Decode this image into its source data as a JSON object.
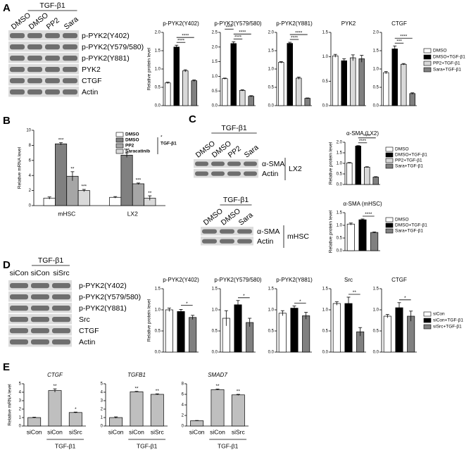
{
  "panels": [
    {
      "label": "A",
      "blots": [
        {
          "treatment": "TGF-β1",
          "lanes": [
            "DMSO",
            "DMSO",
            "PP2",
            "Sara"
          ],
          "rows": [
            "p-PYK2(Y402)",
            "p-PYK2(Y579/580)",
            "p-PYK2(Y881)",
            "PYK2",
            "CTGF",
            "Actin"
          ]
        }
      ],
      "charts": [
        {
          "type": "bar",
          "title": "p-PYK2(Y402)",
          "ylabel": "Relative protein level",
          "values": [
            0.62,
            1.6,
            0.95,
            0.68
          ],
          "errors": [
            0.02,
            0.05,
            0.03,
            0.02
          ],
          "ylim": [
            0,
            2
          ],
          "yticks": [
            {
              "value": 0,
              "label": "0.0"
            },
            0.5,
            {
              "value": 1,
              "label": "1.0"
            },
            1.5,
            {
              "value": 2,
              "label": "2.0"
            }
          ],
          "brackets": [
            {
              "bars": [
                1,
                2
              ],
              "label": "****"
            },
            {
              "bars": [
                1,
                3
              ],
              "label": "****"
            }
          ]
        },
        {
          "type": "bar",
          "title": "p-PYK2(Y579/580)",
          "values": [
            0.92,
            2.12,
            0.52,
            0.32
          ],
          "errors": [
            0.02,
            0.06,
            0.02,
            0.02
          ],
          "ylim": [
            0,
            2.5
          ],
          "yticks": [
            {
              "value": 0,
              "label": "0.0"
            },
            0.5,
            {
              "value": 1,
              "label": "1.0"
            },
            1.5,
            {
              "value": 2,
              "label": "2.0"
            },
            2.5
          ],
          "brackets": [
            {
              "bars": [
                1,
                2
              ],
              "label": "****"
            },
            {
              "bars": [
                1,
                3
              ],
              "label": "****"
            },
            {
              "bars": [
                0,
                1
              ],
              "label": "****"
            }
          ]
        },
        {
          "type": "bar",
          "title": "p-PYK2(Y881)",
          "values": [
            1.18,
            1.7,
            0.75,
            0.2
          ],
          "errors": [
            0.02,
            0.03,
            0.03,
            0.01
          ],
          "ylim": [
            0,
            2
          ],
          "yticks": [
            {
              "value": 0,
              "label": "0.0"
            },
            0.5,
            {
              "value": 1,
              "label": "1.0"
            },
            1.5,
            {
              "value": 2,
              "label": "2.0"
            }
          ],
          "brackets": [
            {
              "bars": [
                1,
                2
              ],
              "label": "****"
            },
            {
              "bars": [
                1,
                3
              ],
              "label": "****"
            }
          ]
        },
        {
          "type": "bar",
          "title": "PYK2",
          "values": [
            1.02,
            0.92,
            0.98,
            0.96
          ],
          "errors": [
            0.03,
            0.04,
            0.06,
            0.07
          ],
          "ylim": [
            0,
            1.5
          ],
          "yticks": [
            {
              "value": 0,
              "label": "0.0"
            },
            0.5,
            {
              "value": 1,
              "label": "1.0"
            },
            1.5
          ]
        },
        {
          "type": "bar",
          "title": "CTGF",
          "values": [
            0.9,
            1.55,
            1.13,
            0.33
          ],
          "errors": [
            0.03,
            0.08,
            0.02,
            0.02
          ],
          "ylim": [
            0,
            2
          ],
          "yticks": [
            {
              "value": 0,
              "label": "0.0"
            },
            0.5,
            {
              "value": 1,
              "label": "1.0"
            },
            1.5,
            {
              "value": 2,
              "label": "2.0"
            }
          ],
          "brackets": [
            {
              "bars": [
                1,
                2
              ],
              "label": "***"
            },
            {
              "bars": [
                1,
                3
              ],
              "label": "****"
            }
          ]
        }
      ],
      "legend": [
        {
          "name": "DMSO",
          "color": "#ffffff"
        },
        {
          "name": "DMSO+TGF-β1",
          "color": "#000000"
        },
        {
          "name": "PP2+TGF-β1",
          "color": "#d9d9d9"
        },
        {
          "name": "Sara+TGF-β1",
          "color": "#808080"
        }
      ]
    },
    {
      "label": "B",
      "charts": [
        {
          "type": "grouped-bar",
          "ylabel": "Relative mRNA level",
          "categories": [
            "mHSC",
            "LX2"
          ],
          "ylim": [
            0,
            10
          ],
          "yticks": [
            0,
            2,
            4,
            6,
            8,
            10
          ],
          "legend_group": "TGF-β1",
          "legend_mark": "*",
          "series": [
            {
              "name": "DMSO",
              "color": "#ffffff",
              "values": [
                1.0,
                1.1
              ],
              "errors": [
                0.15,
                0.1
              ]
            },
            {
              "name": "DMSO",
              "color": "#808080",
              "values": [
                8.2,
                6.7
              ],
              "errors": [
                0.15,
                0.3
              ],
              "stars": [
                "***",
                "***"
              ]
            },
            {
              "name": "PP2",
              "color": "#a6a6a6",
              "values": [
                3.9,
                2.9
              ],
              "errors": [
                0.6,
                0.1
              ],
              "stars": [
                "**",
                "***"
              ]
            },
            {
              "name": "Saracatinib",
              "color": "#d9d9d9",
              "values": [
                2.0,
                1.0
              ],
              "errors": [
                0.15,
                0.3
              ],
              "stars": [
                "***",
                "**"
              ]
            }
          ]
        }
      ]
    },
    {
      "label": "C",
      "blots": [
        {
          "treatment": "TGF-β1",
          "lanes": [
            "DMSO",
            "DMSO",
            "PP2",
            "Sara"
          ],
          "rows": [
            "α-SMA",
            "Actin"
          ],
          "cell_line": "LX2"
        },
        {
          "treatment": "TGF-β1",
          "lanes": [
            "DMSO",
            "DMSO",
            "Sara"
          ],
          "rows": [
            "α-SMA",
            "Actin"
          ],
          "cell_line": "mHSC"
        }
      ],
      "charts": [
        {
          "type": "bar",
          "title": "α-SMA (LX2)",
          "ylabel": "Relative protein level",
          "values": [
            1.02,
            1.82,
            0.82,
            0.35
          ],
          "errors": [
            0.02,
            0.02,
            0.02,
            0.02
          ],
          "ylim": [
            0,
            2
          ],
          "yticks": [
            {
              "value": 0,
              "label": "0.0"
            },
            0.5,
            {
              "value": 1,
              "label": "1.0"
            },
            1.5,
            {
              "value": 2,
              "label": "2.0"
            }
          ],
          "brackets": [
            {
              "bars": [
                1,
                2
              ],
              "label": "****"
            },
            {
              "bars": [
                1,
                3
              ],
              "label": "****"
            }
          ],
          "legend": [
            {
              "name": "DMSO",
              "color": "#ffffff"
            },
            {
              "name": "DMSO+TGF-β1",
              "color": "#000000"
            },
            {
              "name": "PP2+TGF-β1",
              "color": "#d9d9d9"
            },
            {
              "name": "Sara+TGF-β1",
              "color": "#808080"
            }
          ]
        },
        {
          "type": "bar",
          "title": "α-SMA (mHSC)",
          "ylabel": "Relative protein level",
          "values": [
            1.05,
            1.22,
            0.72
          ],
          "errors": [
            0.04,
            0.03,
            0.02
          ],
          "ylim": [
            0,
            1.5
          ],
          "yticks": [
            {
              "value": 0,
              "label": "0.0"
            },
            0.5,
            {
              "value": 1,
              "label": "1.0"
            },
            1.5
          ],
          "brackets": [
            {
              "bars": [
                1,
                2
              ],
              "label": "****"
            }
          ],
          "legend": [
            {
              "name": "DMSO",
              "color": "#ffffff"
            },
            {
              "name": "DMSO+TGF-β1",
              "color": "#000000"
            },
            {
              "name": "Sara+TGF-β1",
              "color": "#808080"
            }
          ]
        }
      ]
    },
    {
      "label": "D",
      "blots": [
        {
          "treatment": "TGF-β1",
          "lanes": [
            "siCon",
            "siCon",
            "siSrc"
          ],
          "rows": [
            "p-PYK2(Y402)",
            "p-PYK2(Y579/580)",
            "p-PYK2(Y881)",
            "Src",
            "CTGF",
            "Actin"
          ]
        }
      ],
      "charts": [
        {
          "type": "bar",
          "title": "p-PYK2(Y402)",
          "ylabel": "Relative protein level",
          "values": [
            1.0,
            0.96,
            0.82
          ],
          "errors": [
            0.04,
            0.05,
            0.05
          ],
          "ylim": [
            0,
            1.5
          ],
          "yticks": [
            {
              "value": 0,
              "label": "0.0"
            },
            0.5,
            {
              "value": 1,
              "label": "1.0"
            },
            1.5
          ],
          "brackets": [
            {
              "bars": [
                1,
                2
              ],
              "label": "*"
            }
          ]
        },
        {
          "type": "bar",
          "title": "p-PYK2(Y579/580)",
          "values": [
            0.8,
            1.12,
            0.7
          ],
          "errors": [
            0.18,
            0.1,
            0.1
          ],
          "ylim": [
            0,
            1.5
          ],
          "yticks": [
            {
              "value": 0,
              "label": "0.0"
            },
            0.5,
            {
              "value": 1,
              "label": "1.0"
            },
            1.5
          ],
          "brackets": [
            {
              "bars": [
                1,
                2
              ],
              "label": "*"
            }
          ]
        },
        {
          "type": "bar",
          "title": "p-PYK2(Y881)",
          "values": [
            0.92,
            1.04,
            0.86
          ],
          "errors": [
            0.06,
            0.05,
            0.08
          ],
          "ylim": [
            0,
            1.5
          ],
          "yticks": [
            {
              "value": 0,
              "label": "0.0"
            },
            0.5,
            {
              "value": 1,
              "label": "1.0"
            },
            1.5
          ],
          "brackets": [
            {
              "bars": [
                1,
                2
              ],
              "label": "*"
            }
          ]
        },
        {
          "type": "bar",
          "title": "Src",
          "values": [
            1.15,
            1.15,
            0.48
          ],
          "errors": [
            0.04,
            0.15,
            0.1
          ],
          "ylim": [
            0,
            1.5
          ],
          "yticks": [
            {
              "value": 0,
              "label": "0.0"
            },
            0.5,
            {
              "value": 1,
              "label": "1.0"
            },
            1.5
          ],
          "brackets": [
            {
              "bars": [
                1,
                2
              ],
              "label": "**"
            }
          ]
        },
        {
          "type": "bar",
          "title": "CTGF",
          "values": [
            0.85,
            1.05,
            0.85
          ],
          "errors": [
            0.04,
            0.12,
            0.12
          ],
          "ylim": [
            0,
            1.5
          ],
          "yticks": [
            {
              "value": 0,
              "label": "0.0"
            },
            0.5,
            {
              "value": 1,
              "label": "1.0"
            },
            1.5
          ],
          "brackets": [
            {
              "bars": [
                1,
                2
              ],
              "label": "*"
            }
          ]
        }
      ],
      "legend": [
        {
          "name": "siCon",
          "color": "#ffffff"
        },
        {
          "name": "siCon+TGF-β1",
          "color": "#000000"
        },
        {
          "name": "siSrc+TGF-β1",
          "color": "#808080"
        }
      ]
    },
    {
      "label": "E",
      "charts": [
        {
          "type": "bar",
          "title": "CTGF",
          "ylabel": "Relative mRNA level",
          "categories": [
            "siCon",
            "siCon",
            "siSrc"
          ],
          "group_label": "TGF-β1",
          "values": [
            1.0,
            4.2,
            1.6
          ],
          "errors": [
            0.05,
            0.2,
            0.05
          ],
          "stars": [
            null,
            "**",
            "*"
          ],
          "color": "#bfbfbf",
          "ylim": [
            0,
            5
          ],
          "yticks": [
            0,
            1,
            2,
            3,
            4,
            5
          ]
        },
        {
          "type": "bar",
          "title": "TGFB1",
          "categories": [
            "siCon",
            "siCon",
            "siSrc"
          ],
          "group_label": "TGF-β1",
          "values": [
            1.0,
            4.05,
            3.75
          ],
          "errors": [
            0.08,
            0.05,
            0.06
          ],
          "stars": [
            null,
            "**",
            "**"
          ],
          "color": "#bfbfbf",
          "ylim": [
            0,
            5
          ],
          "yticks": [
            0,
            1,
            2,
            3,
            4,
            5
          ]
        },
        {
          "type": "bar",
          "title": "SMAD7",
          "categories": [
            "siCon",
            "siCon",
            "siSrc"
          ],
          "group_label": "TGF-β1",
          "values": [
            1.0,
            6.9,
            5.9
          ],
          "errors": [
            0.05,
            0.1,
            0.1
          ],
          "stars": [
            null,
            "**",
            "**"
          ],
          "color": "#bfbfbf",
          "ylim": [
            0,
            8
          ],
          "yticks": [
            0,
            2,
            4,
            6,
            8
          ]
        }
      ]
    }
  ]
}
